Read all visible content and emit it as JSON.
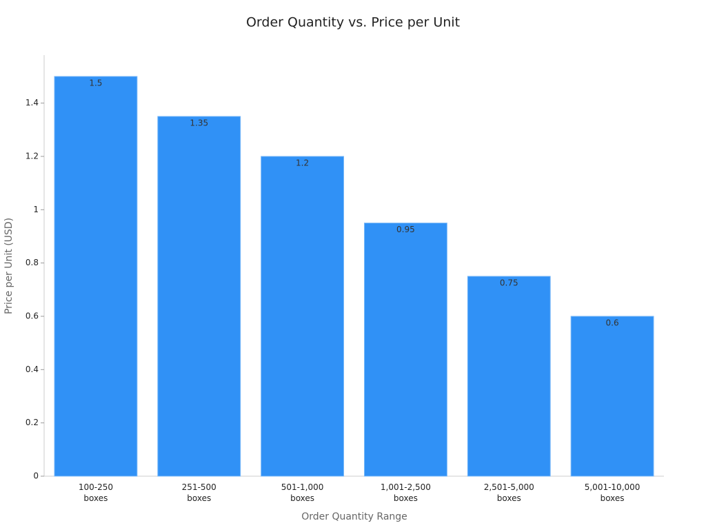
{
  "chart_data": {
    "type": "bar",
    "title": "Order Quantity vs. Price per Unit",
    "x_label": "Order Quantity Range",
    "y_label": "Price per Unit (USD)",
    "categories": [
      "100-250 boxes",
      "251-500 boxes",
      "501-1,000 boxes",
      "1,001-2,500 boxes",
      "2,501-5,000 boxes",
      "5,001-10,000 boxes"
    ],
    "values": [
      1.5,
      1.35,
      1.2,
      0.95,
      0.75,
      0.6
    ],
    "color": "#3091f6",
    "ylim": [
      0,
      1.58
    ],
    "yticks": [
      0,
      0.2,
      0.4,
      0.6,
      0.8,
      1,
      1.2,
      1.4
    ],
    "grid": false
  }
}
